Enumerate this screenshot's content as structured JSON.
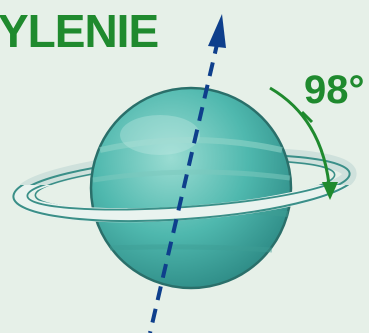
{
  "title": "YLENIE",
  "angle_label": "98°",
  "colors": {
    "background": "#e6f0e8",
    "accent_green": "#1f8a2e",
    "planet": "#4fb8ae",
    "axis": "#0e3f8c"
  }
}
